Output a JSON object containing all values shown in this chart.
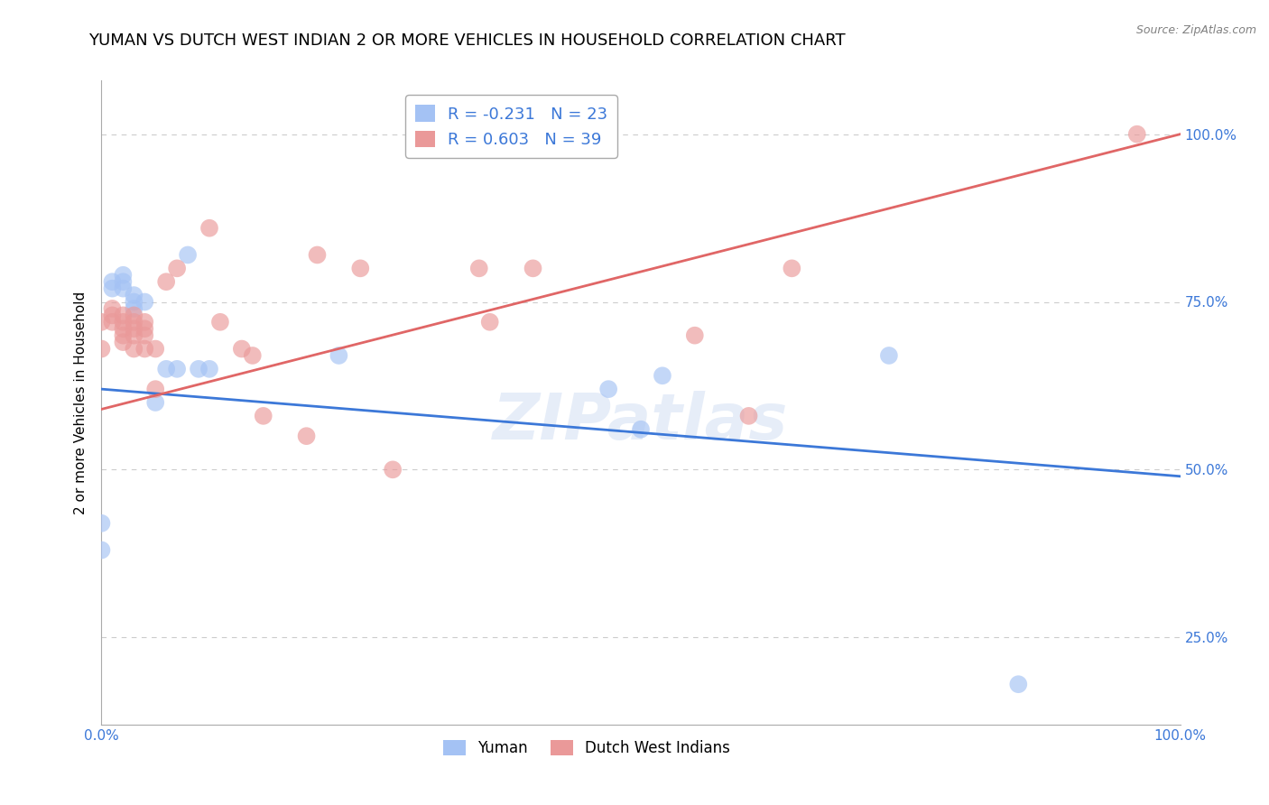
{
  "title": "YUMAN VS DUTCH WEST INDIAN 2 OR MORE VEHICLES IN HOUSEHOLD CORRELATION CHART",
  "source": "Source: ZipAtlas.com",
  "ylabel": "2 or more Vehicles in Household",
  "yuman_R": -0.231,
  "yuman_N": 23,
  "dutch_R": 0.603,
  "dutch_N": 39,
  "blue_color": "#a4c2f4",
  "pink_color": "#ea9999",
  "blue_line_color": "#3c78d8",
  "pink_line_color": "#e06666",
  "legend_labels": [
    "Yuman",
    "Dutch West Indians"
  ],
  "xlim": [
    0.0,
    1.0
  ],
  "ylim": [
    0.12,
    1.08
  ],
  "yticks": [
    0.25,
    0.5,
    0.75,
    1.0
  ],
  "xticks": [
    0.0,
    1.0
  ],
  "yuman_x": [
    0.0,
    0.01,
    0.01,
    0.02,
    0.02,
    0.02,
    0.03,
    0.03,
    0.03,
    0.04,
    0.05,
    0.06,
    0.07,
    0.08,
    0.09,
    0.1,
    0.22,
    0.47,
    0.5,
    0.52,
    0.0,
    0.73,
    0.85
  ],
  "yuman_y": [
    0.42,
    0.77,
    0.78,
    0.77,
    0.78,
    0.79,
    0.74,
    0.75,
    0.76,
    0.75,
    0.6,
    0.65,
    0.65,
    0.82,
    0.65,
    0.65,
    0.67,
    0.62,
    0.56,
    0.64,
    0.38,
    0.67,
    0.18
  ],
  "dutch_x": [
    0.0,
    0.0,
    0.01,
    0.01,
    0.01,
    0.02,
    0.02,
    0.02,
    0.02,
    0.02,
    0.03,
    0.03,
    0.03,
    0.03,
    0.03,
    0.04,
    0.04,
    0.04,
    0.04,
    0.05,
    0.05,
    0.06,
    0.07,
    0.1,
    0.11,
    0.13,
    0.14,
    0.15,
    0.19,
    0.2,
    0.24,
    0.27,
    0.35,
    0.36,
    0.4,
    0.55,
    0.6,
    0.64,
    0.96
  ],
  "dutch_y": [
    0.68,
    0.72,
    0.72,
    0.73,
    0.74,
    0.69,
    0.7,
    0.71,
    0.72,
    0.73,
    0.68,
    0.7,
    0.71,
    0.72,
    0.73,
    0.68,
    0.7,
    0.71,
    0.72,
    0.62,
    0.68,
    0.78,
    0.8,
    0.86,
    0.72,
    0.68,
    0.67,
    0.58,
    0.55,
    0.82,
    0.8,
    0.5,
    0.8,
    0.72,
    0.8,
    0.7,
    0.58,
    0.8,
    1.0
  ],
  "watermark": "ZIPatlas",
  "background_color": "#ffffff",
  "grid_color": "#cccccc",
  "title_fontsize": 13,
  "axis_fontsize": 11,
  "tick_fontsize": 11,
  "blue_line_x0": 0.0,
  "blue_line_y0": 0.62,
  "blue_line_x1": 1.0,
  "blue_line_y1": 0.49,
  "pink_line_x0": 0.0,
  "pink_line_y0": 0.59,
  "pink_line_x1": 1.0,
  "pink_line_y1": 1.0
}
